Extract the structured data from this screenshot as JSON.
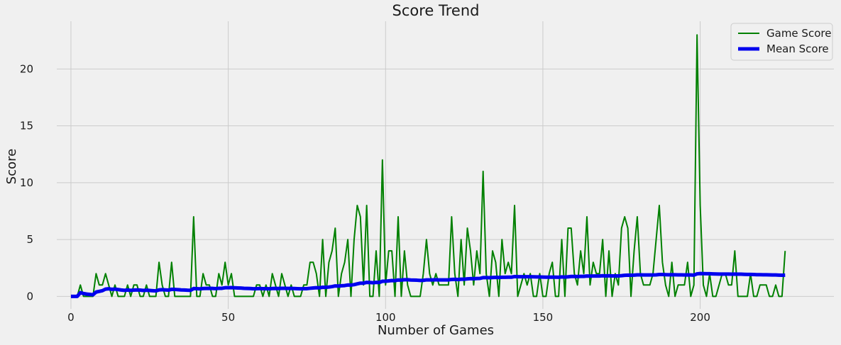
{
  "chart_data": {
    "type": "line",
    "title": "Score Trend",
    "xlabel": "Number of Games",
    "ylabel": "Score",
    "xlim": [
      -4.5,
      242.5
    ],
    "ylim": [
      -1.1,
      24.2
    ],
    "xticks": [
      0,
      50,
      100,
      150,
      200
    ],
    "yticks": [
      0,
      5,
      10,
      15,
      20
    ],
    "grid": true,
    "legend_position": "top-right",
    "background_color": "#f0f0f0",
    "grid_color": "#cbcbcb",
    "series": [
      {
        "name": "Game Score",
        "color": "#008000",
        "line_width": 2,
        "values": [
          0,
          0,
          0,
          1,
          0,
          0,
          0,
          0,
          2,
          1,
          1,
          2,
          1,
          0,
          1,
          0,
          0,
          0,
          1,
          0,
          1,
          1,
          0,
          0,
          1,
          0,
          0,
          0,
          3,
          1,
          0,
          0,
          3,
          0,
          0,
          0,
          0,
          0,
          0,
          7,
          0,
          0,
          2,
          1,
          1,
          0,
          0,
          2,
          1,
          3,
          1,
          2,
          0,
          0,
          0,
          0,
          0,
          0,
          0,
          1,
          1,
          0,
          1,
          0,
          2,
          1,
          0,
          2,
          1,
          0,
          1,
          0,
          0,
          0,
          1,
          1,
          3,
          3,
          2,
          0,
          5,
          0,
          3,
          4,
          6,
          0,
          2,
          3,
          5,
          0,
          5,
          8,
          7,
          1,
          8,
          0,
          0,
          4,
          0,
          12,
          1,
          4,
          4,
          0,
          7,
          0,
          4,
          1,
          0,
          0,
          0,
          0,
          2,
          5,
          2,
          1,
          2,
          1,
          1,
          1,
          1,
          7,
          2,
          0,
          5,
          1,
          6,
          4,
          1,
          4,
          2,
          11,
          2,
          0,
          4,
          3,
          0,
          5,
          2,
          3,
          2,
          8,
          0,
          1,
          2,
          1,
          2,
          0,
          0,
          2,
          0,
          0,
          2,
          3,
          0,
          0,
          5,
          0,
          6,
          6,
          2,
          1,
          4,
          2,
          7,
          1,
          3,
          2,
          2,
          5,
          0,
          4,
          0,
          2,
          1,
          6,
          7,
          6,
          0,
          4,
          7,
          2,
          1,
          1,
          1,
          2,
          5,
          8,
          3,
          1,
          0,
          3,
          0,
          1,
          1,
          1,
          3,
          0,
          1,
          23,
          8,
          1,
          0,
          2,
          0,
          0,
          1,
          2,
          2,
          1,
          1,
          4,
          0,
          0,
          0,
          0,
          2,
          0,
          0,
          1,
          1,
          1,
          0,
          0,
          1,
          0,
          0,
          4
        ]
      },
      {
        "name": "Mean Score",
        "color": "#0000ee",
        "line_width": 5,
        "values": [
          0,
          0,
          0,
          0.33,
          0.25,
          0.2,
          0.17,
          0.14,
          0.38,
          0.44,
          0.5,
          0.64,
          0.67,
          0.62,
          0.64,
          0.6,
          0.56,
          0.53,
          0.56,
          0.53,
          0.55,
          0.57,
          0.55,
          0.52,
          0.54,
          0.52,
          0.5,
          0.48,
          0.57,
          0.59,
          0.57,
          0.55,
          0.62,
          0.61,
          0.59,
          0.57,
          0.56,
          0.54,
          0.53,
          0.69,
          0.68,
          0.66,
          0.69,
          0.7,
          0.71,
          0.7,
          0.68,
          0.71,
          0.71,
          0.76,
          0.76,
          0.77,
          0.75,
          0.74,
          0.73,
          0.71,
          0.7,
          0.69,
          0.67,
          0.68,
          0.69,
          0.68,
          0.68,
          0.67,
          0.69,
          0.7,
          0.69,
          0.71,
          0.71,
          0.7,
          0.7,
          0.69,
          0.68,
          0.67,
          0.68,
          0.68,
          0.71,
          0.74,
          0.76,
          0.75,
          0.8,
          0.79,
          0.82,
          0.86,
          0.92,
          0.91,
          0.93,
          0.95,
          1.0,
          0.99,
          1.03,
          1.1,
          1.16,
          1.16,
          1.23,
          1.22,
          1.2,
          1.23,
          1.22,
          1.33,
          1.33,
          1.36,
          1.39,
          1.38,
          1.44,
          1.43,
          1.46,
          1.46,
          1.44,
          1.43,
          1.42,
          1.4,
          1.41,
          1.45,
          1.45,
          1.45,
          1.46,
          1.45,
          1.45,
          1.45,
          1.45,
          1.49,
          1.5,
          1.48,
          1.51,
          1.51,
          1.54,
          1.56,
          1.55,
          1.57,
          1.58,
          1.65,
          1.65,
          1.64,
          1.66,
          1.67,
          1.66,
          1.68,
          1.68,
          1.69,
          1.69,
          1.74,
          1.73,
          1.73,
          1.73,
          1.73,
          1.73,
          1.72,
          1.71,
          1.71,
          1.7,
          1.69,
          1.69,
          1.7,
          1.69,
          1.68,
          1.71,
          1.7,
          1.72,
          1.75,
          1.75,
          1.74,
          1.76,
          1.76,
          1.79,
          1.78,
          1.79,
          1.79,
          1.79,
          1.81,
          1.8,
          1.81,
          1.8,
          1.8,
          1.8,
          1.82,
          1.85,
          1.87,
          1.86,
          1.87,
          1.89,
          1.89,
          1.88,
          1.88,
          1.88,
          1.88,
          1.89,
          1.92,
          1.92,
          1.91,
          1.9,
          1.91,
          1.9,
          1.89,
          1.89,
          1.88,
          1.89,
          1.88,
          1.87,
          1.98,
          2.01,
          2.0,
          1.99,
          1.99,
          1.98,
          1.97,
          1.96,
          1.96,
          1.96,
          1.96,
          1.95,
          1.96,
          1.95,
          1.95,
          1.94,
          1.93,
          1.93,
          1.92,
          1.91,
          1.91,
          1.9,
          1.9,
          1.89,
          1.88,
          1.88,
          1.87,
          1.86,
          1.87
        ]
      }
    ]
  }
}
